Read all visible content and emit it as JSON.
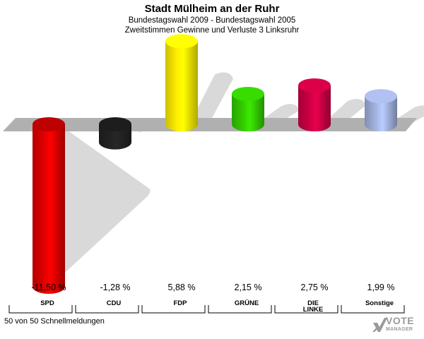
{
  "title": "Stadt Mülheim an der Ruhr",
  "subtitle_1": "Bundestagswahl 2009 - Bundestagswahl 2005",
  "subtitle_2": "Zweitstimmen Gewinne und Verluste 3 Linksruhr",
  "footnote": "50 von 50 Schnellmeldungen",
  "logo": {
    "line1": "VOTE",
    "line2": "MANAGER",
    "icon": "checkmark-x-icon"
  },
  "chart_data": {
    "type": "bar",
    "title": "Stadt Mülheim an der Ruhr",
    "categories": [
      "SPD",
      "CDU",
      "FDP",
      "GRÜNE",
      "DIE LINKE",
      "Sonstige"
    ],
    "values": [
      -11.5,
      -1.28,
      5.88,
      2.15,
      2.75,
      1.99
    ],
    "value_labels": [
      "-11,50 %",
      "-1,28 %",
      "5,88 %",
      "2,15 %",
      "2,75 %",
      "1,99 %"
    ],
    "category_labels": [
      [
        "SPD"
      ],
      [
        "CDU"
      ],
      [
        "FDP"
      ],
      [
        "GRÜNE"
      ],
      [
        "DIE",
        "LINKE"
      ],
      [
        "Sonstige"
      ]
    ],
    "colors": [
      "#e00000",
      "#222222",
      "#ffee00",
      "#33cc00",
      "#cc0044",
      "#a3b3e0"
    ],
    "ylim": [
      -11.5,
      5.88
    ],
    "grid": false,
    "legend": "none"
  }
}
